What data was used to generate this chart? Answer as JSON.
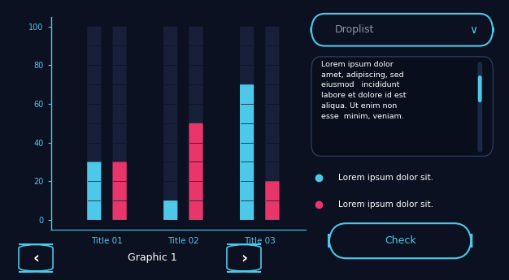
{
  "bg_color": "#0b1120",
  "bar_track_color": "#172038",
  "bar_line_color": "#0b1120",
  "cyan_color": "#4dc8e8",
  "pink_color": "#e8366a",
  "border_color": "#4dc8e8",
  "text_color": "#ffffff",
  "title_color": "#4dc8e8",
  "subtitle_color": "#8899aa",
  "axis_color": "#4dc8e8",
  "tick_color": "#4dc8e8",
  "textbox_bg": "#080e1c",
  "textbox_border": "#2a3a5a",
  "scrollbar_bg": "#1a2a45",
  "groups": [
    "Title 01",
    "Title 02",
    "Title 03"
  ],
  "cyan_values": [
    30,
    10,
    70
  ],
  "pink_values": [
    30,
    50,
    20
  ],
  "y_ticks": [
    0,
    20,
    40,
    60,
    80,
    100
  ],
  "droplist_label": "Droplist",
  "text_box_content": "Lorem ipsum dolor\namet, adipiscing, sed\neiusmod   incididunt\nlabore et dolore id est\naliqua. Ut enim non\nesse  minim, veniam.",
  "legend_cyan": "Lorem ipsum dolor sit.",
  "legend_pink": "Lorem ipsum dolor sit.",
  "nav_label": "Graphic 1",
  "check_label": "Check"
}
